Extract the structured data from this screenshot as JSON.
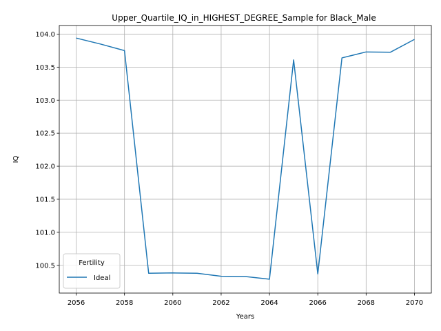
{
  "chart_data": {
    "type": "line",
    "title": "Upper_Quartile_IQ_in_HIGHEST_DEGREE_Sample for Black_Male",
    "xlabel": "Years",
    "ylabel": "IQ",
    "x": [
      2056,
      2057,
      2058,
      2059,
      2060,
      2061,
      2062,
      2063,
      2064,
      2065,
      2066,
      2067,
      2068,
      2069,
      2070
    ],
    "xlim": [
      2055.3,
      2070.7
    ],
    "ylim": [
      100.08,
      104.13
    ],
    "x_ticks": [
      "2056",
      "2058",
      "2060",
      "2062",
      "2064",
      "2066",
      "2068",
      "2070"
    ],
    "y_ticks": [
      "100.5",
      "101.0",
      "101.5",
      "102.0",
      "102.5",
      "103.0",
      "103.5",
      "104.0"
    ],
    "grid": true,
    "legend": {
      "title": "Fertility",
      "placement": "lower left"
    },
    "series": [
      {
        "name": "Ideal",
        "color": "#1f77b4",
        "values": [
          103.94,
          103.85,
          103.75,
          100.38,
          100.385,
          100.38,
          100.335,
          100.33,
          100.29,
          103.61,
          100.37,
          103.64,
          103.73,
          103.725,
          103.92
        ]
      }
    ]
  }
}
